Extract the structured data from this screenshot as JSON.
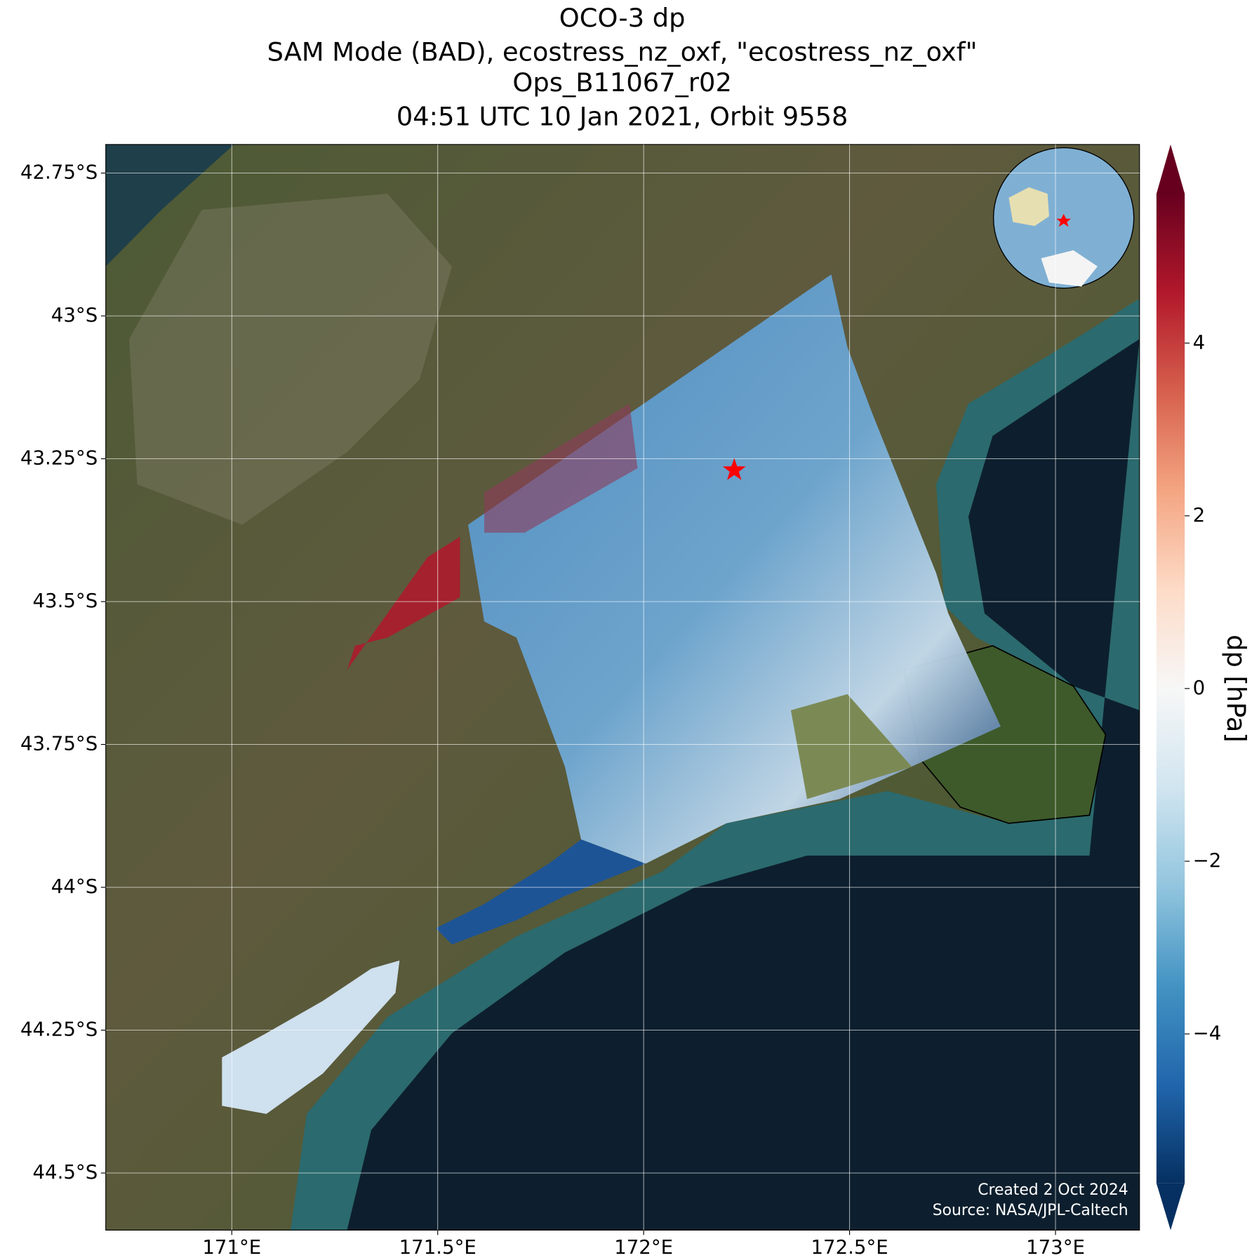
{
  "chart_data": {
    "type": "map",
    "title": [
      "OCO-3 dp",
      "SAM Mode (BAD), ecostress_nz_oxf, \"ecostress_nz_oxf\"",
      "Ops_B11067_r02",
      "04:51 UTC 10 Jan 2021, Orbit 9558"
    ],
    "xlim": [
      170.694,
      173.204
    ],
    "ylim": [
      -44.6,
      -42.7
    ],
    "xticks": [
      {
        "value": 171,
        "label": "171°E"
      },
      {
        "value": 171.5,
        "label": "171.5°E"
      },
      {
        "value": 172,
        "label": "172°E"
      },
      {
        "value": 172.5,
        "label": "172.5°E"
      },
      {
        "value": 173,
        "label": "173°E"
      }
    ],
    "yticks": [
      {
        "value": -42.75,
        "label": "42.75°S"
      },
      {
        "value": -43,
        "label": "43°S"
      },
      {
        "value": -43.25,
        "label": "43.25°S"
      },
      {
        "value": -43.5,
        "label": "43.5°S"
      },
      {
        "value": -43.75,
        "label": "43.75°S"
      },
      {
        "value": -44,
        "label": "44°S"
      },
      {
        "value": -44.25,
        "label": "44.25°S"
      },
      {
        "value": -44.5,
        "label": "44.5°S"
      }
    ],
    "grid": true,
    "target": {
      "lon": 172.22,
      "lat": -43.27,
      "color": "#ff0000"
    },
    "colorbar": {
      "label": "dp [hPa]",
      "clim": [
        -5.73,
        5.73
      ],
      "ticks": [
        {
          "value": -4,
          "label": "−4"
        },
        {
          "value": -2,
          "label": "−2"
        },
        0,
        2,
        4
      ]
    },
    "credits": [
      "Created 2 Oct 2024",
      "Source: NASA/JPL-Caltech"
    ]
  }
}
